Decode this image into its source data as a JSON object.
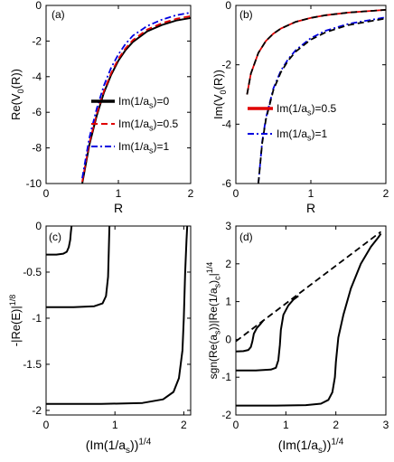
{
  "chart_data": [
    {
      "panel": "(a)",
      "type": "line",
      "xlabel": "R",
      "ylabel": "Re(V0(R))",
      "ylabel_parts": {
        "pre": "Re(V",
        "sub": "0",
        "post": "(R))"
      },
      "xlim": [
        0,
        2
      ],
      "ylim": [
        -10,
        0
      ],
      "xticks": [
        0,
        1,
        2
      ],
      "yticks": [
        0,
        -2,
        -4,
        -6,
        -8,
        -10
      ],
      "grid": false,
      "legend": "right",
      "series": [
        {
          "name": "Im(1/as)=0",
          "label_parts": {
            "pre": "Im(1/a",
            "sub": "s",
            "post": ")=0"
          },
          "color": "#000000",
          "style": "solid",
          "x": [
            0.5,
            0.6,
            0.7,
            0.8,
            0.9,
            1.0,
            1.1,
            1.2,
            1.4,
            1.6,
            1.8,
            2.0
          ],
          "y": [
            -10.0,
            -7.8,
            -6.2,
            -4.9,
            -3.9,
            -3.1,
            -2.5,
            -2.05,
            -1.45,
            -1.1,
            -0.85,
            -0.7
          ]
        },
        {
          "name": "Im(1/as)=0.5",
          "label_parts": {
            "pre": "Im(1/a",
            "sub": "s",
            "post": ")=0.5"
          },
          "color": "#e00000",
          "style": "dashed",
          "x": [
            0.5,
            0.6,
            0.7,
            0.8,
            0.9,
            1.0,
            1.1,
            1.2,
            1.4,
            1.6,
            1.8,
            2.0
          ],
          "y": [
            -9.9,
            -7.7,
            -6.1,
            -4.8,
            -3.8,
            -3.0,
            -2.4,
            -1.95,
            -1.35,
            -1.0,
            -0.75,
            -0.6
          ]
        },
        {
          "name": "Im(1/as)=1",
          "label_parts": {
            "pre": "Im(1/a",
            "sub": "s",
            "post": ")=1"
          },
          "color": "#0000e0",
          "style": "dashdot",
          "x": [
            0.5,
            0.6,
            0.7,
            0.8,
            0.9,
            1.0,
            1.1,
            1.2,
            1.4,
            1.6,
            1.8,
            2.0
          ],
          "y": [
            -9.7,
            -7.4,
            -5.8,
            -4.5,
            -3.5,
            -2.75,
            -2.15,
            -1.7,
            -1.15,
            -0.8,
            -0.55,
            -0.4
          ]
        }
      ]
    },
    {
      "panel": "(b)",
      "type": "line",
      "xlabel": "R",
      "ylabel": "Im(V0(R))",
      "ylabel_parts": {
        "pre": "Im(V",
        "sub": "0",
        "post": "(R))"
      },
      "xlim": [
        0,
        2
      ],
      "ylim": [
        -6,
        0
      ],
      "xticks": [
        0,
        1,
        2
      ],
      "yticks": [
        0,
        -2,
        -4,
        -6
      ],
      "grid": false,
      "legend": "right",
      "series": [
        {
          "name": "Im(1/as)=0.5",
          "label_parts": {
            "pre": "Im(1/a",
            "sub": "s",
            "post": ")=0.5"
          },
          "color": "#e00000",
          "style": "solid",
          "x": [
            0.15,
            0.2,
            0.3,
            0.4,
            0.5,
            0.6,
            0.8,
            1.0,
            1.2,
            1.5,
            2.0
          ],
          "y": [
            -3.0,
            -2.3,
            -1.6,
            -1.2,
            -0.95,
            -0.78,
            -0.55,
            -0.42,
            -0.33,
            -0.24,
            -0.15
          ]
        },
        {
          "name": "",
          "color": "#000000",
          "style": "dashed",
          "x": [
            0.15,
            0.2,
            0.3,
            0.4,
            0.5,
            0.6,
            0.8,
            1.0,
            1.2,
            1.5,
            2.0
          ],
          "y": [
            -3.0,
            -2.3,
            -1.6,
            -1.2,
            -0.95,
            -0.78,
            -0.55,
            -0.42,
            -0.33,
            -0.24,
            -0.15
          ]
        },
        {
          "name": "Im(1/as)=1",
          "label_parts": {
            "pre": "Im(1/a",
            "sub": "s",
            "post": ")=1"
          },
          "color": "#0000e0",
          "style": "dashdot",
          "x": [
            0.3,
            0.35,
            0.4,
            0.5,
            0.6,
            0.7,
            0.8,
            1.0,
            1.2,
            1.5,
            2.0
          ],
          "y": [
            -6.0,
            -4.6,
            -3.8,
            -2.8,
            -2.2,
            -1.8,
            -1.5,
            -1.1,
            -0.85,
            -0.62,
            -0.4
          ]
        },
        {
          "name": "",
          "color": "#000000",
          "style": "dashed",
          "x": [
            0.3,
            0.35,
            0.4,
            0.5,
            0.6,
            0.7,
            0.8,
            1.0,
            1.2,
            1.5,
            2.0
          ],
          "y": [
            -6.0,
            -4.65,
            -3.85,
            -2.85,
            -2.25,
            -1.85,
            -1.55,
            -1.15,
            -0.9,
            -0.66,
            -0.44
          ]
        }
      ]
    },
    {
      "panel": "(c)",
      "type": "line",
      "xlabel": "(Im(1/as))1/4",
      "xlabel_parts": {
        "pre": "(Im(1/a",
        "sub": "s",
        "post": "))",
        "sup": "1/4"
      },
      "ylabel": "-|Re(E)|1/8",
      "ylabel_parts": {
        "pre": "-|Re(E)|",
        "sup": "1/8"
      },
      "xlim": [
        0,
        2.1
      ],
      "ylim": [
        -2.05,
        0
      ],
      "xticks": [
        0,
        1,
        2
      ],
      "yticks": [
        0,
        -0.5,
        -1,
        -1.5,
        -2
      ],
      "grid": false,
      "series": [
        {
          "name": "",
          "color": "#000000",
          "style": "solid",
          "x": [
            0.0,
            0.15,
            0.25,
            0.3,
            0.33,
            0.35,
            0.36,
            0.37
          ],
          "y": [
            -0.31,
            -0.31,
            -0.3,
            -0.28,
            -0.23,
            -0.15,
            -0.07,
            0.0
          ]
        },
        {
          "name": "",
          "color": "#000000",
          "style": "solid",
          "x": [
            0.0,
            0.4,
            0.7,
            0.82,
            0.87,
            0.9,
            0.91,
            0.92
          ],
          "y": [
            -0.88,
            -0.88,
            -0.87,
            -0.84,
            -0.76,
            -0.55,
            -0.3,
            0.0
          ]
        },
        {
          "name": "",
          "color": "#000000",
          "style": "solid",
          "x": [
            0.0,
            0.8,
            1.4,
            1.7,
            1.85,
            1.93,
            1.98,
            2.0,
            2.02,
            2.04,
            2.05
          ],
          "y": [
            -1.93,
            -1.93,
            -1.92,
            -1.88,
            -1.8,
            -1.65,
            -1.35,
            -1.0,
            -0.5,
            -0.15,
            0.0
          ]
        }
      ]
    },
    {
      "panel": "(d)",
      "type": "line",
      "xlabel": "(Im(1/as))1/4",
      "xlabel_parts": {
        "pre": "(Im(1/a",
        "sub": "s",
        "post": "))",
        "sup": "1/4"
      },
      "ylabel": "sgn(Re(as))|Re(1/as)c|1/4",
      "ylabel_parts": {
        "pre": "sgn(Re(a",
        "sub": "s",
        "mid": "))|Re(1/a",
        "sub2": "s",
        "post": ")",
        "sub3": "c",
        "post2": "|",
        "sup": "1/4"
      },
      "xlim": [
        0,
        3
      ],
      "ylim": [
        -2,
        3
      ],
      "xticks": [
        0,
        1,
        2,
        3
      ],
      "yticks": [
        3,
        2,
        1,
        0,
        -1,
        -2
      ],
      "grid": false,
      "series": [
        {
          "name": "",
          "color": "#000000",
          "style": "dashed",
          "x": [
            0.0,
            2.9
          ],
          "y": [
            -0.05,
            2.85
          ]
        },
        {
          "name": "",
          "color": "#000000",
          "style": "solid",
          "x": [
            0.0,
            0.15,
            0.25,
            0.3,
            0.33,
            0.36,
            0.42,
            0.5,
            0.55
          ],
          "y": [
            -0.32,
            -0.31,
            -0.28,
            -0.2,
            -0.05,
            0.15,
            0.3,
            0.42,
            0.5
          ]
        },
        {
          "name": "",
          "color": "#000000",
          "style": "solid",
          "x": [
            0.0,
            0.4,
            0.7,
            0.8,
            0.85,
            0.88,
            0.9,
            0.95,
            1.05,
            1.15,
            1.25
          ],
          "y": [
            -0.82,
            -0.82,
            -0.8,
            -0.75,
            -0.55,
            -0.15,
            0.25,
            0.65,
            0.9,
            1.05,
            1.15
          ]
        },
        {
          "name": "",
          "color": "#000000",
          "style": "solid",
          "x": [
            0.0,
            0.8,
            1.4,
            1.7,
            1.85,
            1.93,
            1.98,
            2.0,
            2.05,
            2.15,
            2.3,
            2.5,
            2.7,
            2.85,
            2.9
          ],
          "y": [
            -1.75,
            -1.75,
            -1.74,
            -1.7,
            -1.6,
            -1.4,
            -1.0,
            -0.6,
            0.05,
            0.65,
            1.35,
            2.0,
            2.45,
            2.7,
            2.8
          ]
        }
      ]
    }
  ]
}
